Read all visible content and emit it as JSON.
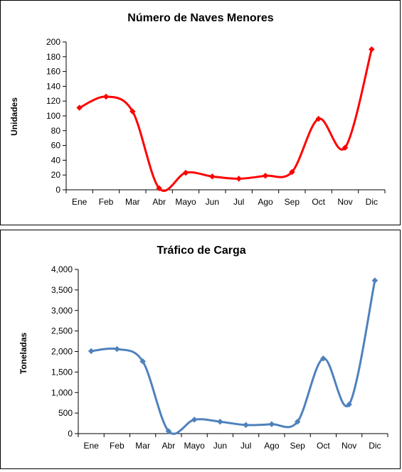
{
  "chart_data": [
    {
      "type": "line",
      "title": "Número de Naves Menores",
      "xlabel": "",
      "ylabel": "Unidades",
      "categories": [
        "Ene",
        "Feb",
        "Mar",
        "Abr",
        "Mayo",
        "Jun",
        "Jul",
        "Ago",
        "Sep",
        "Oct",
        "Nov",
        "Dic"
      ],
      "series": [
        {
          "values": [
            111,
            126,
            106,
            2,
            23,
            18,
            15,
            19,
            24,
            96,
            57,
            190
          ],
          "color": "#ff0000"
        }
      ],
      "ylim": [
        0,
        200
      ],
      "yticks": [
        0,
        20,
        40,
        60,
        80,
        100,
        120,
        140,
        160,
        180,
        200
      ],
      "ytick_labels": [
        "0",
        "20",
        "40",
        "60",
        "80",
        "100",
        "120",
        "140",
        "160",
        "180",
        "200"
      ],
      "grid": false,
      "legend": "none",
      "smooth": true,
      "marker": "diamond"
    },
    {
      "type": "line",
      "title": "Tráfico de Carga",
      "xlabel": "",
      "ylabel": "Toneladas",
      "categories": [
        "Ene",
        "Feb",
        "Mar",
        "Abr",
        "Mayo",
        "Jun",
        "Jul",
        "Ago",
        "Sep",
        "Oct",
        "Nov",
        "Dic"
      ],
      "series": [
        {
          "values": [
            2010,
            2060,
            1760,
            60,
            340,
            290,
            210,
            230,
            290,
            1830,
            710,
            3730
          ],
          "color": "#4f81bd"
        }
      ],
      "ylim": [
        0,
        4000
      ],
      "yticks": [
        0,
        500,
        1000,
        1500,
        2000,
        2500,
        3000,
        3500,
        4000
      ],
      "ytick_labels": [
        "0",
        "500",
        "1,000",
        "1,500",
        "2,000",
        "2,500",
        "3,000",
        "3,500",
        "4,000"
      ],
      "grid": false,
      "legend": "none",
      "smooth": true,
      "marker": "diamond"
    }
  ]
}
